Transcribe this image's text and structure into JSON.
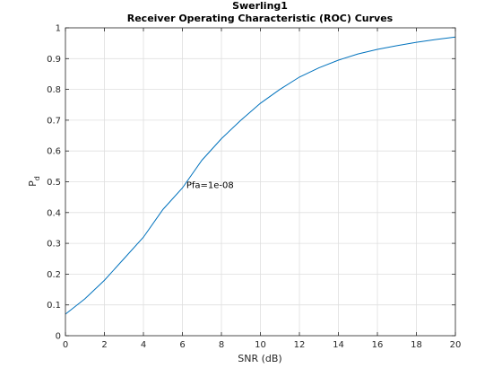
{
  "chart_data": {
    "type": "line",
    "title_line1": "Swerling1",
    "title_line2": "Receiver Operating Characteristic (ROC) Curves",
    "xlabel": "SNR (dB)",
    "ylabel_main": "P",
    "ylabel_sub": "d",
    "xlim": [
      0,
      20
    ],
    "ylim": [
      0,
      1
    ],
    "xticks": [
      0,
      2,
      4,
      6,
      8,
      10,
      12,
      14,
      16,
      18,
      20
    ],
    "xtick_labels": [
      "0",
      "2",
      "4",
      "6",
      "8",
      "10",
      "12",
      "14",
      "16",
      "18",
      "20"
    ],
    "yticks": [
      0,
      0.1,
      0.2,
      0.3,
      0.4,
      0.5,
      0.6,
      0.7,
      0.8,
      0.9,
      1
    ],
    "ytick_labels": [
      "0",
      "0.1",
      "0.2",
      "0.3",
      "0.4",
      "0.5",
      "0.6",
      "0.7",
      "0.8",
      "0.9",
      "1"
    ],
    "grid": true,
    "series": [
      {
        "color": "#0072bd",
        "x": [
          0,
          1,
          2,
          3,
          4,
          5,
          6,
          7,
          8,
          9,
          10,
          11,
          12,
          13,
          14,
          15,
          16,
          17,
          18,
          19,
          20
        ],
        "y": [
          0.07,
          0.12,
          0.18,
          0.25,
          0.32,
          0.41,
          0.48,
          0.57,
          0.64,
          0.7,
          0.755,
          0.8,
          0.84,
          0.87,
          0.895,
          0.915,
          0.93,
          0.942,
          0.953,
          0.962,
          0.97
        ]
      }
    ],
    "annotations": [
      {
        "text": "Pfa=1e-08",
        "x": 6.2,
        "y": 0.49
      }
    ]
  }
}
